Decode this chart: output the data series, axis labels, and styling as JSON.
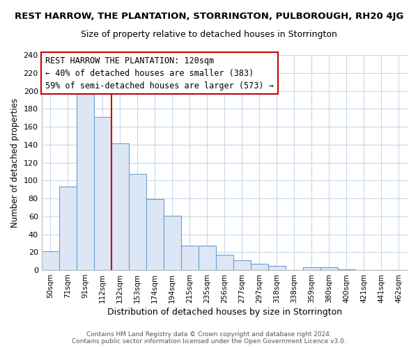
{
  "title": "REST HARROW, THE PLANTATION, STORRINGTON, PULBOROUGH, RH20 4JG",
  "subtitle": "Size of property relative to detached houses in Storrington",
  "xlabel": "Distribution of detached houses by size in Storrington",
  "ylabel": "Number of detached properties",
  "bar_labels": [
    "50sqm",
    "71sqm",
    "91sqm",
    "112sqm",
    "132sqm",
    "153sqm",
    "174sqm",
    "194sqm",
    "215sqm",
    "235sqm",
    "256sqm",
    "277sqm",
    "297sqm",
    "318sqm",
    "338sqm",
    "359sqm",
    "380sqm",
    "400sqm",
    "421sqm",
    "441sqm",
    "462sqm"
  ],
  "bar_values": [
    21,
    93,
    199,
    171,
    141,
    107,
    79,
    61,
    27,
    27,
    17,
    11,
    7,
    5,
    0,
    3,
    3,
    1,
    0,
    0,
    0
  ],
  "bar_color": "#dce6f5",
  "bar_edge_color": "#6a9fd0",
  "vline_color": "#cc0000",
  "annotation_title": "REST HARROW THE PLANTATION: 120sqm",
  "annotation_line1": "← 40% of detached houses are smaller (383)",
  "annotation_line2": "59% of semi-detached houses are larger (573) →",
  "annotation_box_color": "#ffffff",
  "annotation_box_edge": "#cc0000",
  "ylim": [
    0,
    240
  ],
  "yticks": [
    0,
    20,
    40,
    60,
    80,
    100,
    120,
    140,
    160,
    180,
    200,
    220,
    240
  ],
  "footer1": "Contains HM Land Registry data © Crown copyright and database right 2024.",
  "footer2": "Contains public sector information licensed under the Open Government Licence v3.0.",
  "background_color": "#ffffff",
  "grid_color": "#c8d8ea",
  "title_fontsize": 9.5,
  "subtitle_fontsize": 9.0,
  "xlabel_fontsize": 9.0,
  "ylabel_fontsize": 8.5,
  "tick_fontsize": 8.0,
  "xtick_fontsize": 7.5,
  "annotation_fontsize": 8.5,
  "footer_fontsize": 6.5
}
